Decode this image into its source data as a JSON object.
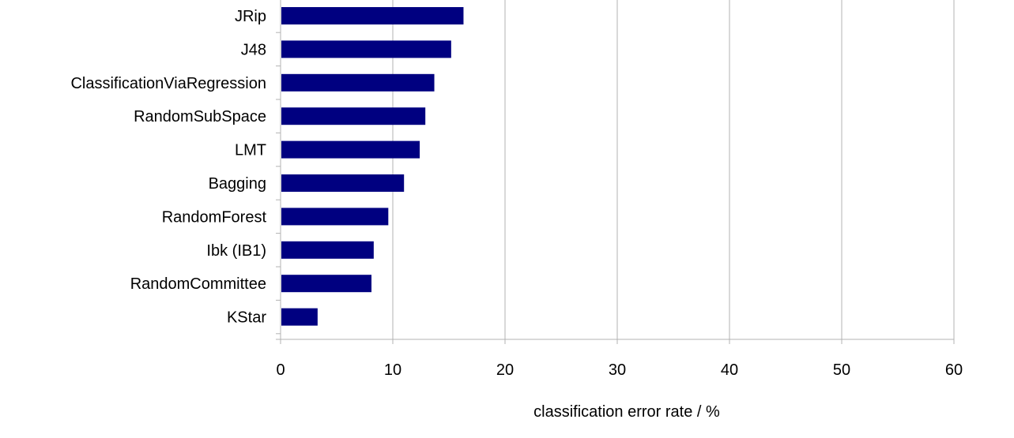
{
  "chart_data": {
    "type": "bar",
    "orientation": "horizontal",
    "categories": [
      "JRip",
      "J48",
      "ClassificationViaRegression",
      "RandomSubSpace",
      "LMT",
      "Bagging",
      "RandomForest",
      "Ibk (IB1)",
      "RandomCommittee",
      "KStar"
    ],
    "values": [
      16.3,
      15.2,
      13.7,
      12.9,
      12.4,
      11.0,
      9.6,
      8.3,
      8.1,
      3.3
    ],
    "title": "",
    "xlabel": "classification error rate / %",
    "ylabel": "",
    "xlim": [
      0,
      60
    ],
    "xticks": [
      "0",
      "10",
      "20",
      "30",
      "40",
      "50",
      "60"
    ],
    "grid": "vertical",
    "colors": {
      "bar": "#000080",
      "grid": "#b3b3b3",
      "axis": "#b3b3b3"
    }
  }
}
